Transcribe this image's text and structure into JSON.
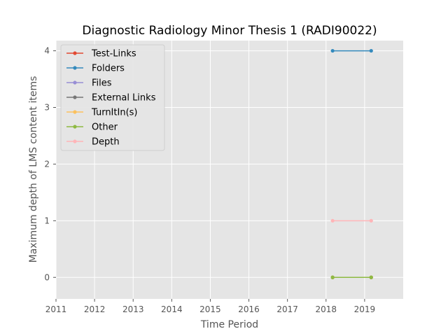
{
  "chart_data": {
    "type": "line",
    "title": "Diagnostic Radiology Minor Thesis 1 (RADI90022)",
    "xlabel": "Time Period",
    "ylabel": "Maximum depth of LMS content items",
    "xlim": [
      2011,
      2020
    ],
    "ylim": [
      -0.38,
      4.18
    ],
    "xticks": [
      "2011",
      "2012",
      "2013",
      "2014",
      "2015",
      "2016",
      "2017",
      "2018",
      "2019"
    ],
    "yticks": [
      "0",
      "1",
      "2",
      "3",
      "4"
    ],
    "grid": true,
    "legend_position": "upper-left",
    "background": "#e5e5e5",
    "x": [
      2018.17,
      2019.17
    ],
    "series": [
      {
        "name": "Test-Links",
        "color": "#e24a33",
        "values": [
          0,
          0
        ]
      },
      {
        "name": "Folders",
        "color": "#348abd",
        "values": [
          4,
          4
        ]
      },
      {
        "name": "Files",
        "color": "#988ed5",
        "values": [
          0,
          0
        ]
      },
      {
        "name": "External Links",
        "color": "#777777",
        "values": [
          0,
          0
        ]
      },
      {
        "name": "TurnItIn(s)",
        "color": "#fbc15e",
        "values": [
          0,
          0
        ]
      },
      {
        "name": "Other",
        "color": "#8eba42",
        "values": [
          0,
          0
        ]
      },
      {
        "name": "Depth",
        "color": "#ffb5b8",
        "values": [
          1,
          1
        ]
      }
    ]
  }
}
